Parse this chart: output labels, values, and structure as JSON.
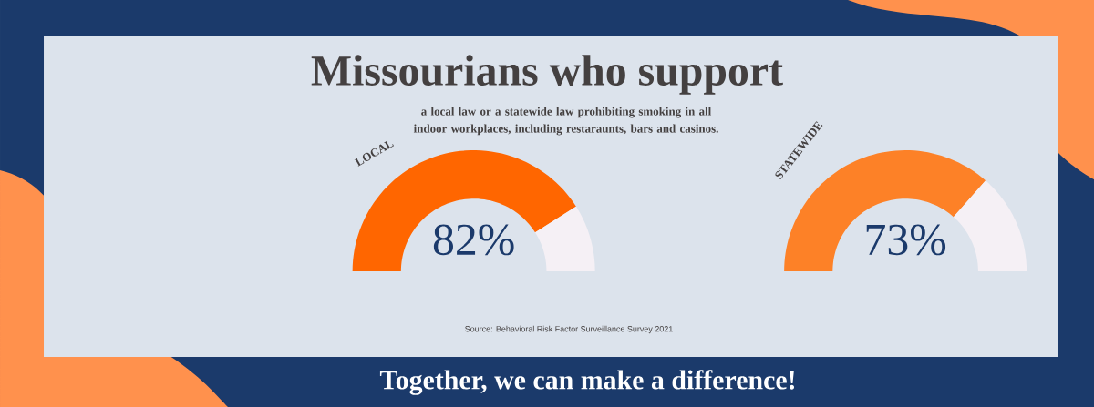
{
  "chart_data": [
    {
      "type": "other",
      "title": "Missourians who support",
      "subtitle": "a local law or a statewide law prohibiting smoking in all indoor workplaces, including restaraunts, bars and casinos.",
      "annotations": [
        "Source: Behavioral Risk Factor Surveillance Survey 2021",
        "Together, we can make a difference!"
      ]
    },
    {
      "type": "donut",
      "title": "LOCAL",
      "categories": [
        null,
        null
      ],
      "values": [
        82,
        18
      ],
      "colors": [
        "#ff6600",
        "#f5f0f5"
      ],
      "value_labels": [
        "82%",
        null
      ]
    },
    {
      "type": "donut",
      "title": "STATEWIDE",
      "categories": [
        null,
        null
      ],
      "values": [
        73,
        27
      ],
      "colors": [
        "#fd8127",
        "#f5f0f5"
      ],
      "value_labels": [
        "73%",
        null
      ]
    }
  ]
}
